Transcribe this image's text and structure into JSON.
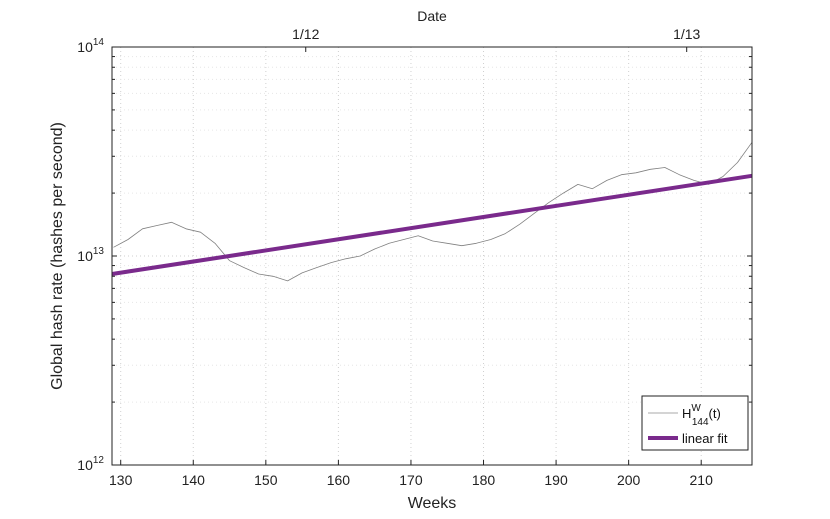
{
  "chart_data": {
    "type": "line",
    "xlabel": "Weeks",
    "ylabel": "Global hash rate (hashes per second)",
    "top_xlabel": "Date",
    "xlim": [
      128.8,
      217
    ],
    "ylim": [
      1000000000000.0,
      100000000000000.0
    ],
    "yscale": "log",
    "x_ticks": [
      130,
      140,
      150,
      160,
      170,
      180,
      190,
      200,
      210
    ],
    "x_tick_labels": [
      "130",
      "140",
      "150",
      "160",
      "170",
      "180",
      "190",
      "200",
      "210"
    ],
    "y_ticks": [
      {
        "value": 1000000000000.0,
        "base": "10",
        "exp": "12"
      },
      {
        "value": 10000000000000.0,
        "base": "10",
        "exp": "13"
      },
      {
        "value": 100000000000000.0,
        "base": "10",
        "exp": "14"
      }
    ],
    "top_ticks": [
      {
        "week": 155.5,
        "label": "1/12"
      },
      {
        "week": 208,
        "label": "1/13"
      }
    ],
    "grid": true,
    "legend_position": "bottom-right",
    "series": [
      {
        "name_main": "H",
        "name_sup": "W",
        "name_sub": "144",
        "name_tail": "(t)",
        "color": "#808080",
        "style": "thin",
        "x": [
          129,
          131,
          133,
          135,
          137,
          139,
          141,
          143,
          145,
          147,
          149,
          151,
          153,
          155,
          157,
          159,
          161,
          163,
          165,
          167,
          169,
          171,
          173,
          175,
          177,
          179,
          181,
          183,
          185,
          187,
          189,
          191,
          193,
          195,
          197,
          199,
          201,
          203,
          205,
          207,
          209,
          211,
          213,
          215,
          217
        ],
        "values": [
          11000000000000.0,
          12000000000000.0,
          13500000000000.0,
          14000000000000.0,
          14500000000000.0,
          13500000000000.0,
          13000000000000.0,
          11500000000000.0,
          9500000000000.0,
          8800000000000.0,
          8200000000000.0,
          8000000000000.0,
          7600000000000.0,
          8300000000000.0,
          8800000000000.0,
          9300000000000.0,
          9700000000000.0,
          10000000000000.0,
          10800000000000.0,
          11500000000000.0,
          12000000000000.0,
          12500000000000.0,
          11800000000000.0,
          11500000000000.0,
          11200000000000.0,
          11500000000000.0,
          12000000000000.0,
          12800000000000.0,
          14200000000000.0,
          16000000000000.0,
          18000000000000.0,
          20000000000000.0,
          22000000000000.0,
          21000000000000.0,
          23000000000000.0,
          24500000000000.0,
          25000000000000.0,
          26000000000000.0,
          26500000000000.0,
          24500000000000.0,
          23000000000000.0,
          22000000000000.0,
          24000000000000.0,
          28000000000000.0,
          35000000000000.0
        ]
      },
      {
        "name": "linear fit",
        "color": "#7a2a8c",
        "style": "thick",
        "x": [
          128.8,
          217
        ],
        "values": [
          8200000000000.0,
          24200000000000.0
        ]
      }
    ]
  }
}
